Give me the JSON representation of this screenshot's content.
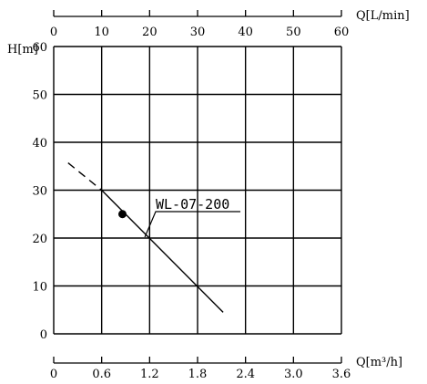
{
  "chart_data": {
    "type": "line",
    "y_axis": {
      "label": "H[m]",
      "ticks": [
        0,
        10,
        20,
        30,
        40,
        50,
        60
      ],
      "range": [
        0,
        60
      ]
    },
    "x_axis_bottom": {
      "label": "Q[m³/h]",
      "ticks": [
        "0",
        "0.6",
        "1.2",
        "1.8",
        "2.4",
        "3.0",
        "3.6"
      ],
      "range": [
        0,
        3.6
      ]
    },
    "x_axis_top": {
      "label": "Q[L/min]",
      "ticks": [
        "0",
        "10",
        "20",
        "30",
        "40",
        "50",
        "60"
      ],
      "range": [
        0,
        60
      ]
    },
    "grid": true,
    "series": [
      {
        "name": "WL-07-200",
        "dashed_segment": [
          [
            0.18,
            35.7
          ],
          [
            0.6,
            30.0
          ]
        ],
        "solid_segment": [
          [
            0.6,
            30.0
          ],
          [
            2.12,
            4.5
          ]
        ],
        "operating_point": [
          0.86,
          25.0
        ],
        "label_anchor": [
          1.14,
          20.2
        ]
      }
    ]
  }
}
